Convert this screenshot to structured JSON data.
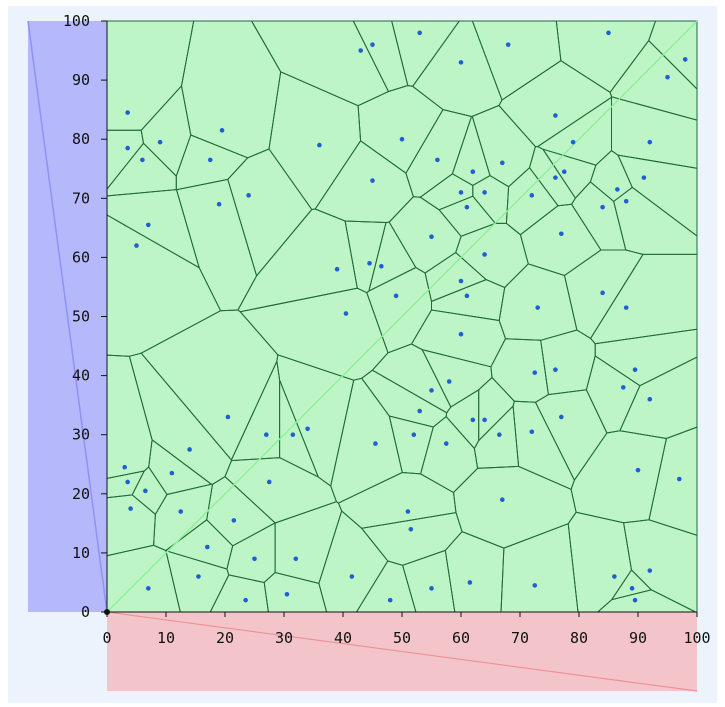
{
  "chart_data": {
    "type": "scatter",
    "title": "",
    "xlabel": "",
    "ylabel": "",
    "xlim": [
      0,
      100
    ],
    "ylim": [
      0,
      100
    ],
    "x_ticks": [
      "0",
      "10",
      "20",
      "30",
      "40",
      "50",
      "60",
      "70",
      "80",
      "90",
      "100"
    ],
    "y_ticks": [
      "0",
      "10",
      "20",
      "30",
      "40",
      "50",
      "60",
      "70",
      "80",
      "90",
      "100"
    ],
    "grid": false,
    "colors": {
      "plot_fill": "#bdf5c6",
      "cell_edge": "#1f6b3a",
      "diagonal": "#8ef09a",
      "point": "#1f5fd6",
      "left_panel": "#b5b8fb",
      "left_line": "#8f93f3",
      "bottom_panel": "#f3c5ca",
      "bottom_line": "#f08f98",
      "background": "#edf3fc"
    },
    "points": [
      [
        3.5,
        84.5
      ],
      [
        3.5,
        78.5
      ],
      [
        6,
        76.5
      ],
      [
        9,
        79.5
      ],
      [
        7,
        65.5
      ],
      [
        5,
        62
      ],
      [
        19.5,
        81.5
      ],
      [
        17.5,
        76.5
      ],
      [
        19,
        69
      ],
      [
        24,
        70.5
      ],
      [
        36,
        79
      ],
      [
        43,
        95
      ],
      [
        45,
        96
      ],
      [
        53,
        98
      ],
      [
        60,
        93
      ],
      [
        68,
        96
      ],
      [
        85,
        98
      ],
      [
        95,
        90.5
      ],
      [
        98,
        93.5
      ],
      [
        50,
        80
      ],
      [
        45,
        73
      ],
      [
        56,
        76.5
      ],
      [
        62,
        74.5
      ],
      [
        67,
        76
      ],
      [
        64,
        71
      ],
      [
        60,
        71
      ],
      [
        61,
        68.5
      ],
      [
        55,
        63.5
      ],
      [
        64,
        60.5
      ],
      [
        76,
        84
      ],
      [
        79,
        79.5
      ],
      [
        92,
        79.5
      ],
      [
        91,
        73.5
      ],
      [
        86.5,
        71.5
      ],
      [
        88,
        69.5
      ],
      [
        76,
        73.5
      ],
      [
        77.5,
        74.5
      ],
      [
        72,
        70.5
      ],
      [
        84,
        68.5
      ],
      [
        77,
        64
      ],
      [
        39,
        58
      ],
      [
        44.5,
        59
      ],
      [
        46.5,
        58.5
      ],
      [
        49,
        53.5
      ],
      [
        60,
        56
      ],
      [
        61,
        53.5
      ],
      [
        73,
        51.5
      ],
      [
        84,
        54
      ],
      [
        88,
        51.5
      ],
      [
        40.5,
        50.5
      ],
      [
        60,
        47
      ],
      [
        55,
        37.5
      ],
      [
        58,
        39
      ],
      [
        53,
        34
      ],
      [
        62,
        32.5
      ],
      [
        64,
        32.5
      ],
      [
        57.5,
        28.5
      ],
      [
        52,
        30
      ],
      [
        45.5,
        28.5
      ],
      [
        66.5,
        30
      ],
      [
        72,
        30.5
      ],
      [
        72.5,
        40.5
      ],
      [
        76,
        41
      ],
      [
        77,
        33
      ],
      [
        87.5,
        38
      ],
      [
        89.5,
        41
      ],
      [
        92,
        36
      ],
      [
        20.5,
        33
      ],
      [
        27,
        30
      ],
      [
        31.5,
        30
      ],
      [
        34,
        31
      ],
      [
        27.5,
        22
      ],
      [
        14,
        27.5
      ],
      [
        3,
        24.5
      ],
      [
        3.5,
        22
      ],
      [
        6.5,
        20.5
      ],
      [
        4,
        17.5
      ],
      [
        11,
        23.5
      ],
      [
        12.5,
        17
      ],
      [
        21.5,
        15.5
      ],
      [
        17,
        11
      ],
      [
        25,
        9
      ],
      [
        32,
        9
      ],
      [
        15.5,
        6
      ],
      [
        23.5,
        2
      ],
      [
        30.5,
        3
      ],
      [
        7,
        4
      ],
      [
        41.5,
        6
      ],
      [
        48,
        2
      ],
      [
        51,
        17
      ],
      [
        51.5,
        14
      ],
      [
        55,
        4
      ],
      [
        61.5,
        5
      ],
      [
        67,
        19
      ],
      [
        72.5,
        4.5
      ],
      [
        90,
        24
      ],
      [
        97,
        22.5
      ],
      [
        86,
        6
      ],
      [
        89,
        4
      ],
      [
        92,
        7
      ],
      [
        89.5,
        2
      ]
    ]
  }
}
